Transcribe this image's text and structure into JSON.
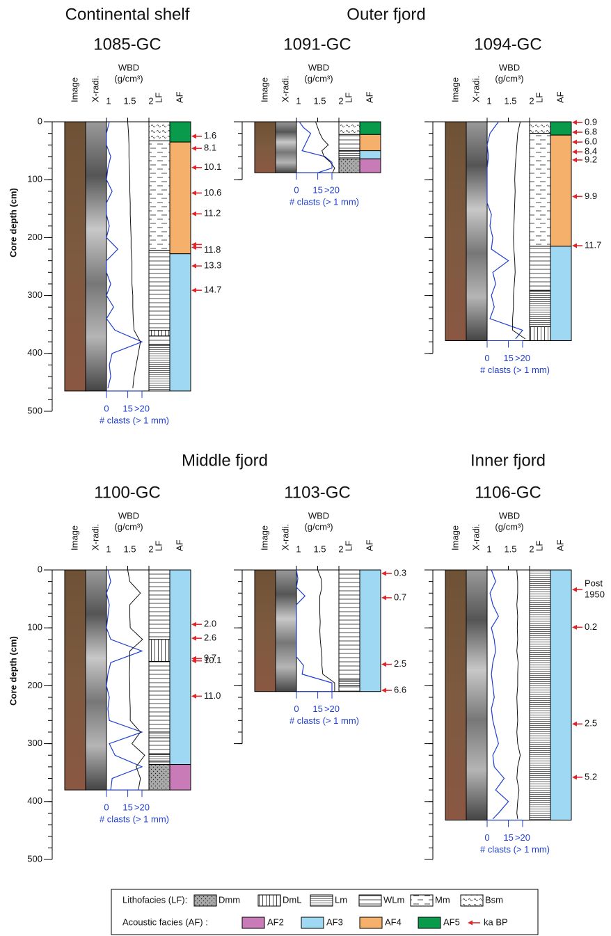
{
  "figure": {
    "depth_label": "Core depth (cm)",
    "column_labels": {
      "image": "Image",
      "xradi": "X-radi.",
      "lf": "LF",
      "af": "AF"
    },
    "wbd_label": "WBD",
    "wbd_unit": "(g/cm³)",
    "clast_label": "# clasts (> 1 mm)",
    "wbd_xlim": [
      1,
      2
    ],
    "wbd_xticks": [
      1,
      1.5,
      2
    ],
    "clast_xlim": [
      0,
      25
    ],
    "clast_xticks": [
      0,
      15,
      {
        "value": 25,
        "label": ">20"
      }
    ],
    "regions": [
      {
        "title": "Continental shelf"
      },
      {
        "title": "Outer fjord"
      },
      {
        "title": "Middle fjord"
      },
      {
        "title": "Inner fjord"
      }
    ]
  },
  "chart_data": [
    {
      "type": "core",
      "name": "1085-GC",
      "ylim": [
        0,
        500
      ],
      "yticks": [
        0,
        100,
        200,
        300,
        400,
        500
      ],
      "minor_step": 20,
      "depth_labels": true,
      "af": [
        {
          "facies": "AF5",
          "top": 0,
          "bottom": 35
        },
        {
          "facies": "AF4",
          "top": 35,
          "bottom": 228
        },
        {
          "facies": "AF3",
          "top": 228,
          "bottom": 465
        }
      ],
      "lf": [
        {
          "facies": "Bsm",
          "top": 0,
          "bottom": 33
        },
        {
          "facies": "Mm",
          "top": 33,
          "bottom": 222
        },
        {
          "facies": "WLm",
          "top": 222,
          "bottom": 360
        },
        {
          "facies": "DmL",
          "top": 360,
          "bottom": 370
        },
        {
          "facies": "WLm",
          "top": 370,
          "bottom": 385
        },
        {
          "facies": "Lm",
          "top": 385,
          "bottom": 465
        }
      ],
      "ages": [
        {
          "label": "1.6",
          "depths": [
            25
          ]
        },
        {
          "label": "8.1",
          "depths": [
            46
          ]
        },
        {
          "label": "10.1",
          "depths": [
            79
          ]
        },
        {
          "label": "10.6",
          "depths": [
            123
          ]
        },
        {
          "label": "11.2",
          "depths": [
            159
          ]
        },
        {
          "label": "11.8",
          "depths": [
            212,
            217
          ]
        },
        {
          "label": "13.3",
          "depths": [
            249
          ]
        },
        {
          "label": "14.7",
          "depths": [
            291
          ]
        }
      ],
      "depth": [
        0,
        20,
        40,
        60,
        80,
        100,
        120,
        140,
        160,
        180,
        200,
        220,
        240,
        260,
        280,
        300,
        320,
        340,
        360,
        380,
        400,
        420,
        440,
        460
      ],
      "wbd": [
        1.5,
        1.52,
        1.53,
        1.53,
        1.54,
        1.55,
        1.55,
        1.56,
        1.56,
        1.57,
        1.58,
        1.58,
        1.6,
        1.6,
        1.6,
        1.62,
        1.62,
        1.63,
        1.65,
        1.8,
        1.75,
        1.7,
        1.65,
        1.62
      ],
      "clasts": [
        2,
        0,
        0,
        3,
        1,
        0,
        4,
        0,
        0,
        2,
        0,
        8,
        0,
        0,
        3,
        0,
        5,
        0,
        6,
        25,
        4,
        2,
        3,
        1
      ]
    },
    {
      "type": "core",
      "name": "1091-GC",
      "ylim": [
        0,
        100
      ],
      "yticks": [
        0,
        100
      ],
      "minor_step": 20,
      "depth_labels": false,
      "af": [
        {
          "facies": "AF5",
          "top": 0,
          "bottom": 22
        },
        {
          "facies": "AF4",
          "top": 22,
          "bottom": 50
        },
        {
          "facies": "AF3",
          "top": 50,
          "bottom": 64
        },
        {
          "facies": "AF2",
          "top": 64,
          "bottom": 88
        }
      ],
      "lf": [
        {
          "facies": "Bsm",
          "top": 0,
          "bottom": 22
        },
        {
          "facies": "WLm",
          "top": 22,
          "bottom": 50
        },
        {
          "facies": "Lm",
          "top": 50,
          "bottom": 64
        },
        {
          "facies": "Dmm",
          "top": 64,
          "bottom": 88
        }
      ],
      "ages": [],
      "depth": [
        0,
        10,
        20,
        30,
        40,
        50,
        60,
        70,
        80,
        88
      ],
      "wbd": [
        1.45,
        1.5,
        1.55,
        1.62,
        1.75,
        1.6,
        1.65,
        1.8,
        1.9,
        1.85
      ],
      "clasts": [
        2,
        5,
        10,
        8,
        6,
        4,
        20,
        25,
        25,
        15
      ]
    },
    {
      "type": "core",
      "name": "1094-GC",
      "ylim": [
        0,
        400
      ],
      "yticks": [
        0,
        100,
        200,
        300,
        400
      ],
      "minor_step": 20,
      "depth_labels": false,
      "af": [
        {
          "facies": "AF5",
          "top": 0,
          "bottom": 23
        },
        {
          "facies": "AF4",
          "top": 23,
          "bottom": 215
        },
        {
          "facies": "AF3",
          "top": 215,
          "bottom": 378
        }
      ],
      "lf": [
        {
          "facies": "Bsm",
          "top": 0,
          "bottom": 20
        },
        {
          "facies": "Mm",
          "top": 20,
          "bottom": 215
        },
        {
          "facies": "WLm",
          "top": 215,
          "bottom": 292
        },
        {
          "facies": "Lm",
          "top": 292,
          "bottom": 354
        },
        {
          "facies": "DmL",
          "top": 354,
          "bottom": 378
        }
      ],
      "ages": [
        {
          "label": "0.9",
          "depths": [
            1
          ]
        },
        {
          "label": "6.8",
          "depths": [
            18
          ]
        },
        {
          "label": "6.0",
          "depths": [
            35
          ]
        },
        {
          "label": "8.4",
          "depths": [
            52
          ]
        },
        {
          "label": "9.2",
          "depths": [
            66
          ]
        },
        {
          "label": "9.9",
          "depths": [
            129
          ]
        },
        {
          "label": "11.7",
          "depths": [
            214
          ]
        }
      ],
      "depth": [
        0,
        20,
        40,
        60,
        80,
        100,
        120,
        140,
        160,
        180,
        200,
        220,
        240,
        260,
        280,
        300,
        320,
        340,
        360,
        375
      ],
      "wbd": [
        1.78,
        1.72,
        1.7,
        1.68,
        1.66,
        1.65,
        1.66,
        1.65,
        1.64,
        1.63,
        1.62,
        1.63,
        1.65,
        1.66,
        1.64,
        1.62,
        1.62,
        1.6,
        1.6,
        1.9
      ],
      "clasts": [
        8,
        2,
        0,
        1,
        0,
        0,
        0,
        0,
        3,
        2,
        4,
        3,
        15,
        4,
        6,
        3,
        5,
        2,
        25,
        20
      ]
    },
    {
      "type": "core",
      "name": "1100-GC",
      "ylim": [
        0,
        500
      ],
      "yticks": [
        0,
        100,
        200,
        300,
        400,
        500
      ],
      "minor_step": 20,
      "depth_labels": true,
      "af": [
        {
          "facies": "AF3",
          "top": 0,
          "bottom": 336
        },
        {
          "facies": "AF2",
          "top": 336,
          "bottom": 380
        }
      ],
      "lf": [
        {
          "facies": "WLm",
          "top": 0,
          "bottom": 120
        },
        {
          "facies": "DmL",
          "top": 120,
          "bottom": 158
        },
        {
          "facies": "WLm",
          "top": 158,
          "bottom": 280
        },
        {
          "facies": "Lm",
          "top": 280,
          "bottom": 290
        },
        {
          "facies": "WLm",
          "top": 290,
          "bottom": 318
        },
        {
          "facies": "Lm",
          "top": 318,
          "bottom": 330
        },
        {
          "facies": "WLm",
          "top": 330,
          "bottom": 336
        },
        {
          "facies": "Dmm",
          "top": 336,
          "bottom": 380
        }
      ],
      "ages": [
        {
          "label": "2.0",
          "depths": [
            94
          ]
        },
        {
          "label": "2.6",
          "depths": [
            118
          ]
        },
        {
          "label": "9.7",
          "depths": [
            153
          ]
        },
        {
          "label": "10.1",
          "depths": [
            157
          ]
        },
        {
          "label": "11.0",
          "depths": [
            218
          ]
        }
      ],
      "depth": [
        0,
        20,
        40,
        60,
        80,
        100,
        120,
        140,
        160,
        180,
        200,
        220,
        240,
        260,
        280,
        300,
        320,
        340,
        360,
        380
      ],
      "wbd": [
        1.5,
        1.55,
        1.8,
        1.55,
        1.55,
        1.56,
        1.85,
        1.55,
        1.55,
        1.54,
        1.55,
        1.55,
        1.56,
        1.56,
        1.8,
        1.6,
        1.9,
        1.7,
        1.8,
        1.75
      ],
      "clasts": [
        1,
        3,
        0,
        2,
        1,
        0,
        3,
        25,
        3,
        1,
        0,
        2,
        1,
        2,
        25,
        2,
        6,
        25,
        4,
        3
      ]
    },
    {
      "type": "core",
      "name": "1103-GC",
      "ylim": [
        0,
        300
      ],
      "yticks": [
        0,
        100,
        200,
        300
      ],
      "minor_step": 20,
      "depth_labels": false,
      "af": [
        {
          "facies": "AF3",
          "top": 0,
          "bottom": 210
        }
      ],
      "lf": [
        {
          "facies": "WLm",
          "top": 0,
          "bottom": 190
        },
        {
          "facies": "Lm",
          "top": 190,
          "bottom": 200
        },
        {
          "facies": "WLm",
          "top": 200,
          "bottom": 210
        }
      ],
      "ages": [
        {
          "label": "0.3",
          "depths": [
            6
          ]
        },
        {
          "label": "0.7",
          "depths": [
            48
          ]
        },
        {
          "label": "2.5",
          "depths": [
            163
          ]
        },
        {
          "label": "6.6",
          "depths": [
            208
          ]
        }
      ],
      "depth": [
        0,
        15,
        30,
        45,
        60,
        75,
        90,
        105,
        120,
        135,
        150,
        165,
        180,
        195,
        210
      ],
      "wbd": [
        1.5,
        1.58,
        1.6,
        1.55,
        1.55,
        1.55,
        1.56,
        1.55,
        1.56,
        1.58,
        1.6,
        1.6,
        1.62,
        1.9,
        1.9
      ],
      "clasts": [
        0,
        1,
        0,
        6,
        0,
        0,
        0,
        0,
        0,
        0,
        0,
        5,
        4,
        25,
        25
      ]
    },
    {
      "type": "core",
      "name": "1106-GC",
      "ylim": [
        0,
        500
      ],
      "yticks": [
        0,
        100,
        200,
        300,
        400,
        500
      ],
      "minor_step": 20,
      "depth_labels": false,
      "af": [
        {
          "facies": "AF3",
          "top": 0,
          "bottom": 432
        }
      ],
      "lf": [
        {
          "facies": "Lm",
          "top": 0,
          "bottom": 432
        }
      ],
      "ages": [
        {
          "label": [
            "Post",
            "1950"
          ],
          "depths": [
            34
          ]
        },
        {
          "label": "0.2",
          "depths": [
            99
          ]
        },
        {
          "label": "2.5",
          "depths": [
            266
          ]
        },
        {
          "label": "5.2",
          "depths": [
            358
          ]
        }
      ],
      "depth": [
        0,
        20,
        40,
        60,
        80,
        100,
        120,
        140,
        160,
        180,
        200,
        220,
        240,
        260,
        280,
        300,
        320,
        340,
        360,
        380,
        400,
        420,
        430
      ],
      "wbd": [
        1.7,
        1.72,
        1.72,
        1.7,
        1.72,
        1.71,
        1.72,
        1.7,
        1.73,
        1.72,
        1.72,
        1.7,
        1.71,
        1.72,
        1.7,
        1.72,
        1.78,
        1.72,
        1.7,
        1.75,
        1.72,
        1.7,
        1.72
      ],
      "clasts": [
        3,
        6,
        2,
        4,
        8,
        3,
        5,
        6,
        4,
        3,
        4,
        5,
        3,
        4,
        6,
        8,
        4,
        5,
        12,
        6,
        15,
        8,
        4
      ]
    }
  ],
  "legend": {
    "lf_title": "Lithofacies (LF):",
    "lf": [
      "Dmm",
      "DmL",
      "Lm",
      "WLm",
      "Mm",
      "Bsm"
    ],
    "af_title": "Acoustic facies (AF) :",
    "af": [
      {
        "name": "AF2",
        "color": "#c97bb8"
      },
      {
        "name": "AF3",
        "color": "#9fd8f2"
      },
      {
        "name": "AF4",
        "color": "#f5b06c"
      },
      {
        "name": "AF5",
        "color": "#0a9a4c"
      }
    ],
    "age": "ka BP"
  }
}
